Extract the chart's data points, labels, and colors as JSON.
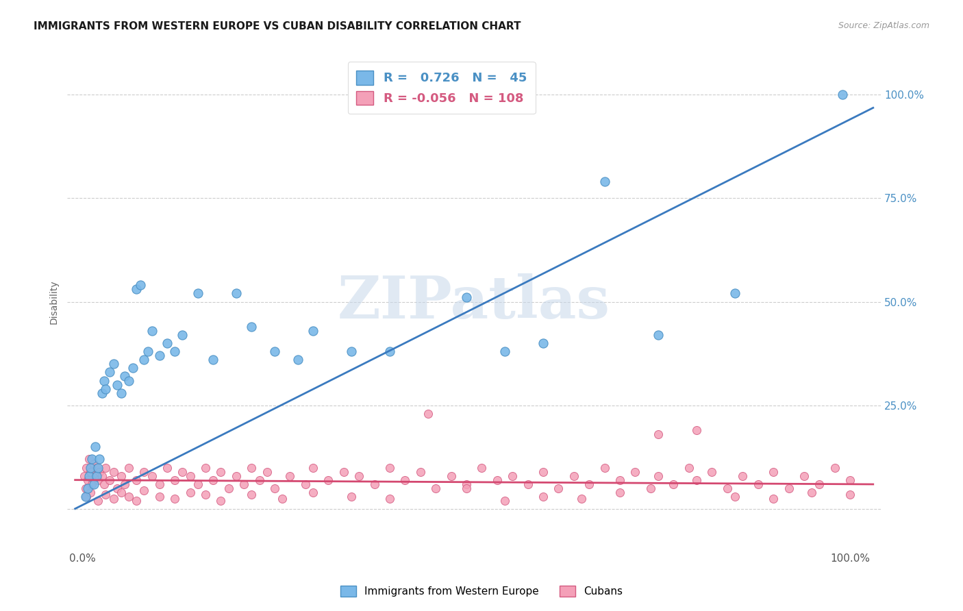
{
  "title": "IMMIGRANTS FROM WESTERN EUROPE VS CUBAN DISABILITY CORRELATION CHART",
  "source": "Source: ZipAtlas.com",
  "ylabel": "Disability",
  "legend1_label": "Immigrants from Western Europe",
  "legend2_label": "Cubans",
  "r1": 0.726,
  "n1": 45,
  "r2": -0.056,
  "n2": 108,
  "color_blue": "#7ab8e8",
  "color_pink": "#f4a0b8",
  "color_blue_dark": "#4a90c4",
  "color_pink_dark": "#d45a80",
  "line_blue": "#3a7abf",
  "line_pink": "#d44870",
  "watermark_text": "ZIPatlas",
  "blue_x": [
    0.4,
    0.6,
    0.8,
    1.0,
    1.2,
    1.4,
    1.6,
    1.8,
    2.0,
    2.2,
    2.5,
    2.8,
    3.0,
    3.5,
    4.0,
    4.5,
    5.0,
    5.5,
    6.0,
    6.5,
    7.0,
    7.5,
    8.0,
    8.5,
    9.0,
    10.0,
    11.0,
    12.0,
    13.0,
    15.0,
    17.0,
    20.0,
    22.0,
    25.0,
    28.0,
    30.0,
    35.0,
    40.0,
    50.0,
    55.0,
    60.0,
    68.0,
    75.0,
    85.0,
    99.0
  ],
  "blue_y": [
    3.0,
    5.0,
    8.0,
    10.0,
    12.0,
    6.0,
    15.0,
    8.0,
    10.0,
    12.0,
    28.0,
    31.0,
    29.0,
    33.0,
    35.0,
    30.0,
    28.0,
    32.0,
    31.0,
    34.0,
    53.0,
    54.0,
    36.0,
    38.0,
    43.0,
    37.0,
    40.0,
    38.0,
    42.0,
    52.0,
    36.0,
    52.0,
    44.0,
    38.0,
    36.0,
    43.0,
    38.0,
    38.0,
    51.0,
    38.0,
    40.0,
    79.0,
    42.0,
    52.0,
    100.0
  ],
  "pink_x": [
    0.2,
    0.4,
    0.5,
    0.6,
    0.8,
    1.0,
    1.2,
    1.4,
    1.6,
    1.8,
    2.0,
    2.2,
    2.5,
    2.8,
    3.0,
    3.5,
    4.0,
    4.5,
    5.0,
    5.5,
    6.0,
    7.0,
    8.0,
    9.0,
    10.0,
    11.0,
    12.0,
    13.0,
    14.0,
    15.0,
    16.0,
    17.0,
    18.0,
    19.0,
    20.0,
    21.0,
    22.0,
    23.0,
    24.0,
    25.0,
    27.0,
    29.0,
    30.0,
    32.0,
    34.0,
    36.0,
    38.0,
    40.0,
    42.0,
    44.0,
    46.0,
    48.0,
    50.0,
    52.0,
    54.0,
    56.0,
    58.0,
    60.0,
    62.0,
    64.0,
    66.0,
    68.0,
    70.0,
    72.0,
    74.0,
    75.0,
    77.0,
    79.0,
    80.0,
    82.0,
    84.0,
    86.0,
    88.0,
    90.0,
    92.0,
    94.0,
    96.0,
    98.0,
    100.0,
    0.5,
    1.0,
    2.0,
    3.0,
    4.0,
    5.0,
    6.0,
    7.0,
    8.0,
    10.0,
    12.0,
    14.0,
    16.0,
    18.0,
    22.0,
    26.0,
    30.0,
    35.0,
    40.0,
    45.0,
    50.0,
    55.0,
    60.0,
    65.0,
    70.0,
    75.0,
    80.0,
    85.0,
    90.0,
    95.0,
    100.0
  ],
  "pink_y": [
    8.0,
    5.0,
    10.0,
    7.0,
    12.0,
    9.0,
    6.0,
    11.0,
    8.0,
    10.0,
    7.0,
    9.0,
    8.0,
    6.0,
    10.0,
    7.0,
    9.0,
    5.0,
    8.0,
    6.0,
    10.0,
    7.0,
    9.0,
    8.0,
    6.0,
    10.0,
    7.0,
    9.0,
    8.0,
    6.0,
    10.0,
    7.0,
    9.0,
    5.0,
    8.0,
    6.0,
    10.0,
    7.0,
    9.0,
    5.0,
    8.0,
    6.0,
    10.0,
    7.0,
    9.0,
    8.0,
    6.0,
    10.0,
    7.0,
    9.0,
    5.0,
    8.0,
    6.0,
    10.0,
    7.0,
    8.0,
    6.0,
    9.0,
    5.0,
    8.0,
    6.0,
    10.0,
    7.0,
    9.0,
    5.0,
    8.0,
    6.0,
    10.0,
    7.0,
    9.0,
    5.0,
    8.0,
    6.0,
    9.0,
    5.0,
    8.0,
    6.0,
    10.0,
    7.0,
    3.0,
    4.0,
    2.0,
    3.5,
    2.5,
    4.0,
    3.0,
    2.0,
    4.5,
    3.0,
    2.5,
    4.0,
    3.5,
    2.0,
    3.5,
    2.5,
    4.0,
    3.0,
    2.5,
    23.0,
    5.0,
    2.0,
    3.0,
    2.5,
    4.0,
    18.0,
    19.0,
    3.0,
    2.5,
    4.0,
    3.5
  ]
}
